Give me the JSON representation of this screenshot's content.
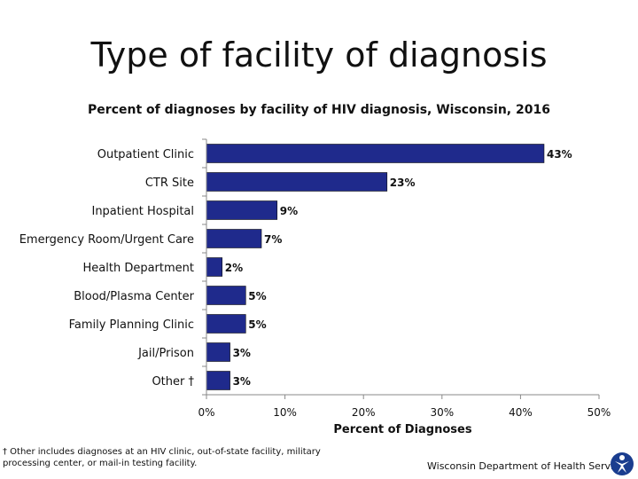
{
  "title": "Type of facility of diagnosis",
  "subtitle": "Percent of diagnoses by facility of HIV diagnosis, Wisconsin, 2016",
  "footnote": "† Other includes diagnoses at an HIV clinic, out-of-state facility, military processing center, or mail-in testing facility.",
  "credit": "Wisconsin Department of Health Services",
  "logo_icon": "person-figure-icon",
  "chart_data": {
    "type": "bar",
    "orientation": "horizontal",
    "categories": [
      "Outpatient Clinic",
      "CTR Site",
      "Inpatient Hospital",
      "Emergency Room/Urgent Care",
      "Health Department",
      "Blood/Plasma Center",
      "Family Planning Clinic",
      "Jail/Prison",
      "Other †"
    ],
    "values": [
      43,
      23,
      9,
      7,
      2,
      5,
      5,
      3,
      3
    ],
    "value_labels": [
      "43%",
      "23%",
      "9%",
      "7%",
      "2%",
      "5%",
      "5%",
      "3%",
      "3%"
    ],
    "xlabel": "Percent of Diagnoses",
    "xlim": [
      0,
      50
    ],
    "xticks": [
      0,
      10,
      20,
      30,
      40,
      50
    ],
    "xtick_labels": [
      "0%",
      "10%",
      "20%",
      "30%",
      "40%",
      "50%"
    ],
    "bar_color": "#1f2a8c",
    "grid": false
  }
}
